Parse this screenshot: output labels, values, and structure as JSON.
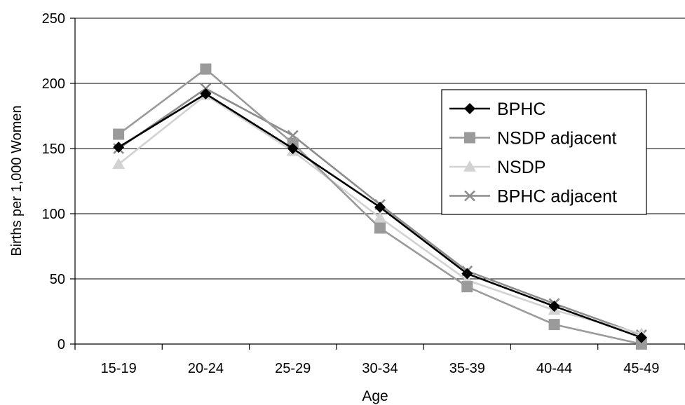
{
  "chart_data": {
    "type": "line",
    "title": "",
    "xlabel": "Age",
    "ylabel": "Births per 1,000 Women",
    "categories": [
      "15-19",
      "20-24",
      "25-29",
      "30-34",
      "35-39",
      "40-44",
      "45-49"
    ],
    "ylim": [
      0,
      250
    ],
    "yticks": [
      0,
      50,
      100,
      150,
      200,
      250
    ],
    "grid": true,
    "legend_position": "right",
    "series": [
      {
        "name": "BPHC",
        "values": [
          151,
          192,
          150,
          105,
          54,
          29,
          5
        ],
        "color": "#000000",
        "marker": "diamond"
      },
      {
        "name": "NSDP adjacent",
        "values": [
          161,
          211,
          154,
          89,
          44,
          15,
          0
        ],
        "color": "#9a9a9a",
        "marker": "square"
      },
      {
        "name": "NSDP",
        "values": [
          138,
          191,
          148,
          97,
          49,
          26,
          8
        ],
        "color": "#d2d2d2",
        "marker": "triangle"
      },
      {
        "name": "BPHC adjacent",
        "values": [
          150,
          196,
          160,
          107,
          56,
          31,
          7
        ],
        "color": "#8c8c8c",
        "marker": "x"
      }
    ]
  }
}
